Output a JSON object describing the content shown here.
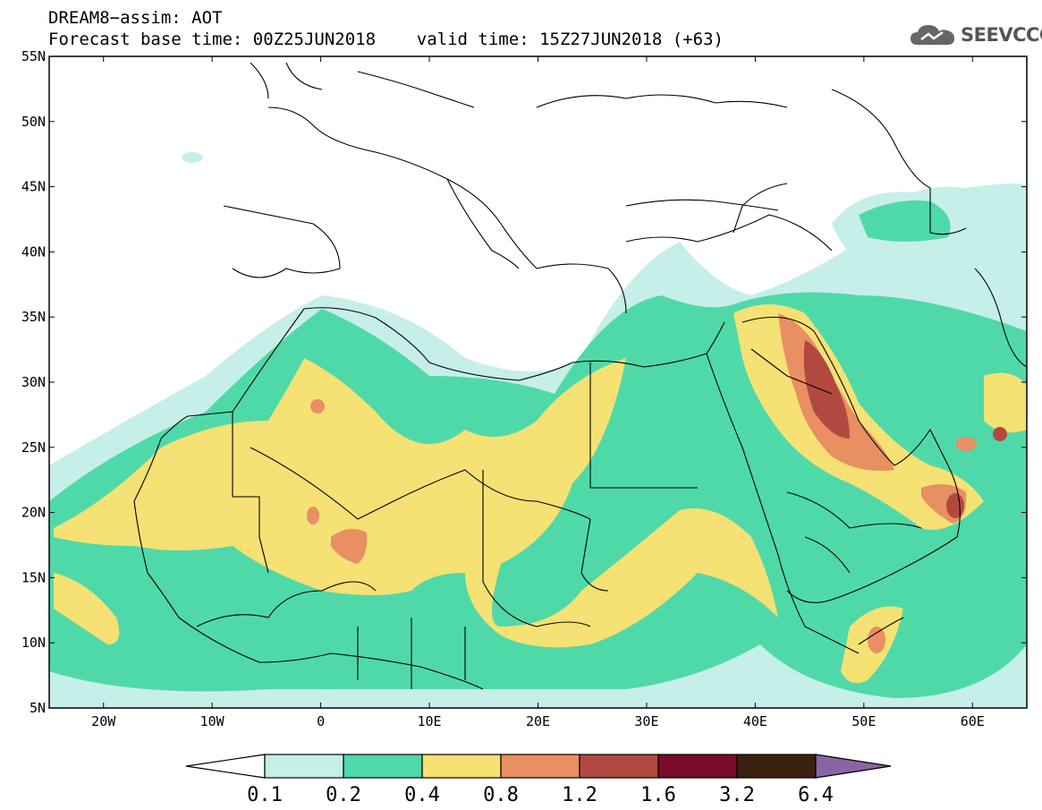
{
  "header": {
    "title": "DREAM8−assim: AOT",
    "subtitle": "Forecast base time: 00Z25JUN2018    valid time: 15Z27JUN2018 (+63)"
  },
  "logo": {
    "text": "SEEVCCC",
    "icon": "cloud-icon"
  },
  "map": {
    "lon_range": [
      -25,
      65
    ],
    "lat_range": [
      5,
      55
    ],
    "lat_ticks": [
      "55N",
      "50N",
      "45N",
      "40N",
      "35N",
      "30N",
      "25N",
      "20N",
      "15N",
      "10N",
      "5N"
    ],
    "lon_ticks": [
      "20W",
      "10W",
      "0",
      "10E",
      "20E",
      "30E",
      "40E",
      "50E",
      "60E"
    ]
  },
  "colorbar": {
    "labels": [
      "0.1",
      "0.2",
      "0.4",
      "0.8",
      "1.2",
      "1.6",
      "3.2",
      "6.4"
    ],
    "colors": [
      "#ffffff",
      "#c6efe9",
      "#4fd9a9",
      "#f5e174",
      "#e88f63",
      "#b2493f",
      "#7a0b2a",
      "#3b2210",
      "#8a65a6"
    ]
  },
  "fields": {
    "background": "#ffffff",
    "land_line": "#000000"
  }
}
